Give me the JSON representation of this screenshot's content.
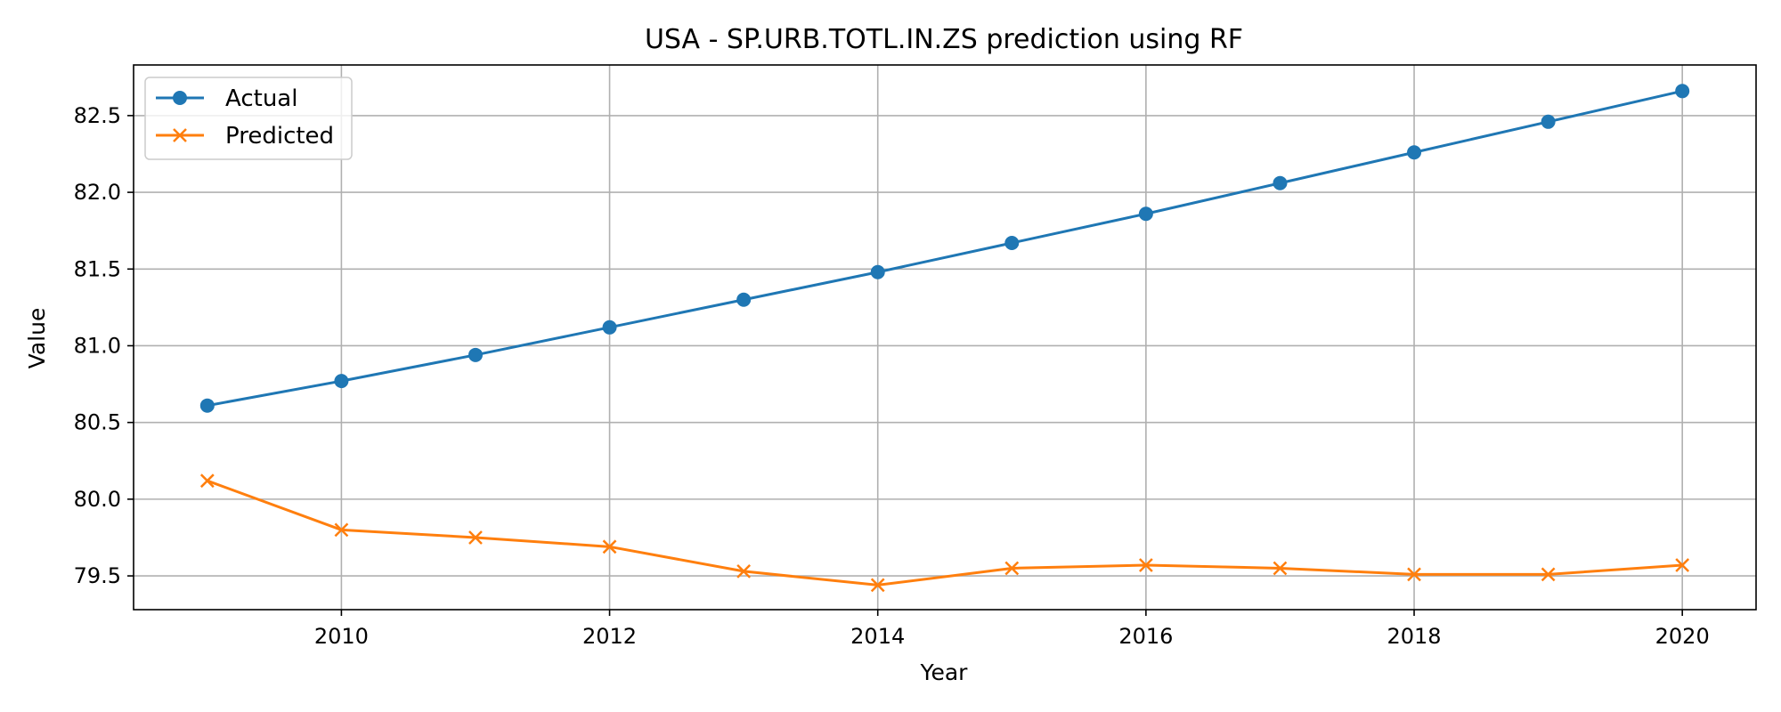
{
  "chart_data": {
    "type": "line",
    "title": "USA - SP.URB.TOTL.IN.ZS prediction using RF",
    "xlabel": "Year",
    "ylabel": "Value",
    "x": [
      2009,
      2010,
      2011,
      2012,
      2013,
      2014,
      2015,
      2016,
      2017,
      2018,
      2019,
      2020
    ],
    "xlim": [
      2008.45,
      2020.55
    ],
    "ylim": [
      79.28,
      82.83
    ],
    "xticks": [
      "2010",
      "2012",
      "2014",
      "2016",
      "2018",
      "2020"
    ],
    "yticks": [
      "79.5",
      "80.0",
      "80.5",
      "81.0",
      "81.5",
      "82.0",
      "82.5"
    ],
    "grid": true,
    "legend_position": "top-left",
    "series": [
      {
        "name": "Actual",
        "color": "#1f77b4",
        "marker": "circle",
        "values": [
          80.61,
          80.77,
          80.94,
          81.12,
          81.3,
          81.48,
          81.67,
          81.86,
          82.06,
          82.26,
          82.46,
          82.66
        ]
      },
      {
        "name": "Predicted",
        "color": "#ff7f0e",
        "marker": "x",
        "values": [
          80.12,
          79.8,
          79.75,
          79.69,
          79.53,
          79.44,
          79.55,
          79.57,
          79.55,
          79.51,
          79.51,
          79.57
        ]
      }
    ]
  }
}
